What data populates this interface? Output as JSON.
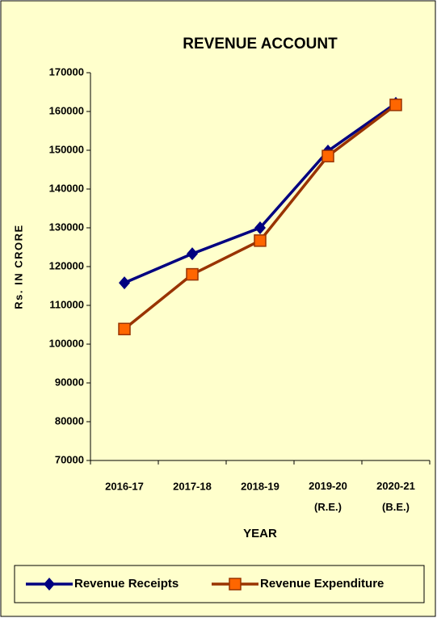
{
  "chart_data": {
    "type": "line",
    "title": "REVENUE ACCOUNT",
    "x_label": "YEAR",
    "y_label": "Rs. IN CRORE",
    "categories": [
      "2016-17",
      "2017-18",
      "2018-19",
      "2019-20\n(R.E.)",
      "2020-21\n(B.E.)"
    ],
    "series": [
      {
        "name": "Revenue Receipts",
        "color": "#000080",
        "marker": "diamond",
        "values": [
          115800,
          123300,
          130000,
          149800,
          162100
        ]
      },
      {
        "name": "Revenue Expenditure",
        "color": "#993300",
        "marker_color": "#ff6600",
        "marker": "square",
        "values": [
          103900,
          118000,
          126700,
          148500,
          161700
        ]
      }
    ],
    "ylim": [
      70000,
      170000
    ],
    "yticks": [
      70000,
      80000,
      90000,
      100000,
      110000,
      120000,
      130000,
      140000,
      150000,
      160000,
      170000
    ],
    "legend": "bottom"
  }
}
